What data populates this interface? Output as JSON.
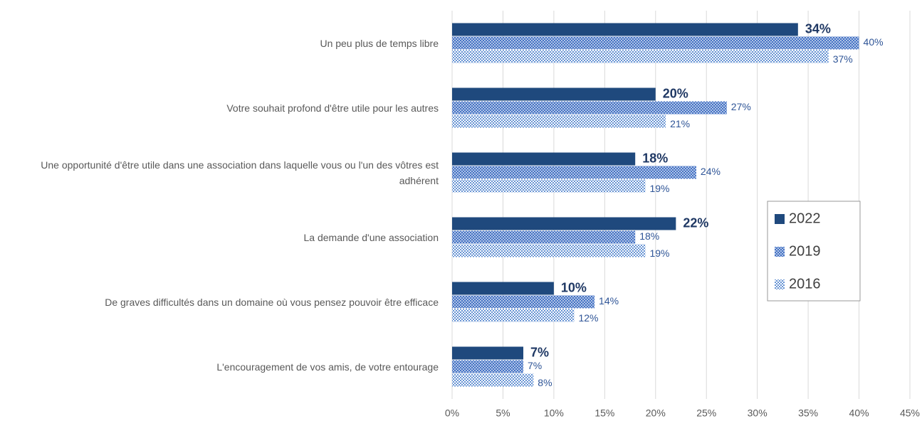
{
  "chart_data": {
    "type": "bar",
    "orientation": "horizontal",
    "categories": [
      "Un peu plus de temps libre",
      "Votre souhait profond d'être utile pour les autres",
      "Une opportunité d'être utile dans une association dans laquelle vous ou l'un des vôtres est adhérent",
      "La demande d'une association",
      "De graves difficultés dans un domaine où vous pensez pouvoir être efficace",
      "L'encouragement de vos amis, de votre entourage"
    ],
    "series": [
      {
        "name": "2022",
        "color": "#1f497d",
        "values": [
          34,
          20,
          18,
          22,
          10,
          7
        ],
        "value_labels": [
          "34%",
          "20%",
          "18%",
          "22%",
          "10%",
          "7%"
        ]
      },
      {
        "name": "2019",
        "color": "#4472c4",
        "values": [
          40,
          27,
          24,
          18,
          14,
          7
        ],
        "value_labels": [
          "40%",
          "27%",
          "24%",
          "18%",
          "14%",
          "7%"
        ]
      },
      {
        "name": "2016",
        "color": "#5b8bd0",
        "values": [
          37,
          21,
          19,
          19,
          12,
          8
        ],
        "value_labels": [
          "37%",
          "21%",
          "19%",
          "19%",
          "12%",
          "8%"
        ]
      }
    ],
    "xlim": [
      0,
      45
    ],
    "xticks": [
      {
        "value": 0,
        "label": "0%"
      },
      {
        "value": 5,
        "label": "5%"
      },
      {
        "value": 10,
        "label": "10%"
      },
      {
        "value": 15,
        "label": "15%"
      },
      {
        "value": 20,
        "label": "20%"
      },
      {
        "value": 25,
        "label": "25%"
      },
      {
        "value": 30,
        "label": "30%"
      },
      {
        "value": 35,
        "label": "35%"
      },
      {
        "value": 40,
        "label": "40%"
      },
      {
        "value": 45,
        "label": "45%"
      }
    ],
    "grid": true,
    "legend": "right"
  }
}
